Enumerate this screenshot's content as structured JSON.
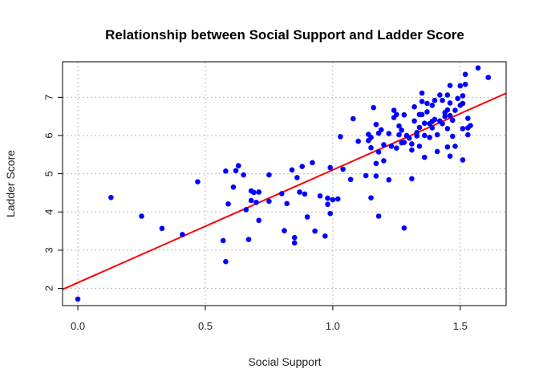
{
  "chart_data": {
    "type": "scatter",
    "title": "Relationship between Social Support and Ladder Score",
    "xlabel": "Social Support",
    "ylabel": "Ladder Score",
    "xlim": [
      -0.06,
      1.68
    ],
    "ylim": [
      1.55,
      7.93
    ],
    "xticks": [
      0,
      0.5,
      1.0,
      1.5
    ],
    "xtick_labels": [
      "0.0",
      "0.5",
      "1.0",
      "1.5"
    ],
    "yticks": [
      2,
      3,
      4,
      5,
      6,
      7
    ],
    "ytick_labels": [
      "2",
      "3",
      "4",
      "5",
      "6",
      "7"
    ],
    "grid": true,
    "point_color": "#0000ff",
    "line_color": "#ff0000",
    "fit_line": {
      "intercept": 2.15,
      "slope": 2.95
    },
    "points": [
      [
        0.0,
        1.72
      ],
      [
        0.13,
        4.38
      ],
      [
        0.25,
        3.89
      ],
      [
        0.33,
        3.57
      ],
      [
        0.41,
        3.41
      ],
      [
        0.47,
        4.79
      ],
      [
        0.57,
        3.25
      ],
      [
        0.58,
        2.7
      ],
      [
        0.58,
        5.07
      ],
      [
        0.59,
        4.21
      ],
      [
        0.61,
        4.65
      ],
      [
        0.62,
        5.08
      ],
      [
        0.63,
        5.21
      ],
      [
        0.65,
        4.97
      ],
      [
        0.66,
        4.06
      ],
      [
        0.67,
        3.28
      ],
      [
        0.68,
        4.3
      ],
      [
        0.68,
        4.55
      ],
      [
        0.69,
        4.51
      ],
      [
        0.7,
        4.25
      ],
      [
        0.71,
        3.78
      ],
      [
        0.71,
        4.52
      ],
      [
        0.75,
        4.97
      ],
      [
        0.75,
        4.28
      ],
      [
        0.8,
        4.48
      ],
      [
        0.81,
        3.51
      ],
      [
        0.82,
        4.22
      ],
      [
        0.84,
        5.1
      ],
      [
        0.85,
        3.33
      ],
      [
        0.85,
        3.19
      ],
      [
        0.86,
        4.9
      ],
      [
        0.87,
        4.52
      ],
      [
        0.88,
        5.19
      ],
      [
        0.89,
        4.47
      ],
      [
        0.9,
        3.87
      ],
      [
        0.92,
        5.29
      ],
      [
        0.93,
        3.5
      ],
      [
        0.95,
        4.42
      ],
      [
        0.97,
        3.37
      ],
      [
        0.98,
        4.36
      ],
      [
        0.98,
        4.2
      ],
      [
        0.99,
        5.16
      ],
      [
        0.99,
        3.96
      ],
      [
        1.0,
        4.32
      ],
      [
        1.02,
        4.34
      ],
      [
        1.03,
        5.97
      ],
      [
        1.04,
        5.12
      ],
      [
        1.07,
        4.85
      ],
      [
        1.08,
        6.44
      ],
      [
        1.1,
        5.85
      ],
      [
        1.13,
        4.95
      ],
      [
        1.14,
        5.87
      ],
      [
        1.14,
        6.03
      ],
      [
        1.15,
        4.37
      ],
      [
        1.15,
        5.68
      ],
      [
        1.15,
        5.95
      ],
      [
        1.16,
        6.73
      ],
      [
        1.17,
        6.29
      ],
      [
        1.17,
        5.27
      ],
      [
        1.17,
        4.94
      ],
      [
        1.18,
        5.57
      ],
      [
        1.18,
        3.89
      ],
      [
        1.18,
        6.06
      ],
      [
        1.19,
        6.15
      ],
      [
        1.2,
        5.34
      ],
      [
        1.2,
        5.76
      ],
      [
        1.22,
        4.84
      ],
      [
        1.22,
        6.05
      ],
      [
        1.23,
        5.72
      ],
      [
        1.24,
        6.47
      ],
      [
        1.24,
        6.66
      ],
      [
        1.25,
        5.67
      ],
      [
        1.25,
        6.55
      ],
      [
        1.26,
        6.25
      ],
      [
        1.26,
        6.02
      ],
      [
        1.27,
        5.81
      ],
      [
        1.27,
        6.14
      ],
      [
        1.28,
        5.82
      ],
      [
        1.28,
        3.58
      ],
      [
        1.28,
        6.54
      ],
      [
        1.29,
        6.0
      ],
      [
        1.3,
        5.93
      ],
      [
        1.31,
        4.87
      ],
      [
        1.31,
        5.62
      ],
      [
        1.31,
        5.78
      ],
      [
        1.32,
        6.38
      ],
      [
        1.32,
        6.75
      ],
      [
        1.33,
        6.08
      ],
      [
        1.33,
        5.99
      ],
      [
        1.34,
        6.55
      ],
      [
        1.34,
        6.21
      ],
      [
        1.34,
        5.72
      ],
      [
        1.35,
        7.11
      ],
      [
        1.35,
        6.89
      ],
      [
        1.35,
        6.55
      ],
      [
        1.36,
        6.32
      ],
      [
        1.36,
        6.0
      ],
      [
        1.36,
        5.43
      ],
      [
        1.37,
        6.84
      ],
      [
        1.37,
        6.62
      ],
      [
        1.38,
        6.31
      ],
      [
        1.38,
        5.95
      ],
      [
        1.39,
        6.2
      ],
      [
        1.39,
        6.79
      ],
      [
        1.39,
        6.37
      ],
      [
        1.4,
        6.42
      ],
      [
        1.4,
        6.92
      ],
      [
        1.41,
        6.02
      ],
      [
        1.41,
        5.58
      ],
      [
        1.42,
        6.38
      ],
      [
        1.42,
        7.06
      ],
      [
        1.43,
        6.31
      ],
      [
        1.43,
        6.92
      ],
      [
        1.44,
        6.6
      ],
      [
        1.44,
        6.5
      ],
      [
        1.45,
        7.06
      ],
      [
        1.45,
        6.67
      ],
      [
        1.45,
        6.18
      ],
      [
        1.45,
        5.7
      ],
      [
        1.46,
        7.31
      ],
      [
        1.46,
        6.85
      ],
      [
        1.46,
        6.52
      ],
      [
        1.46,
        5.46
      ],
      [
        1.47,
        6.4
      ],
      [
        1.47,
        5.98
      ],
      [
        1.48,
        5.72
      ],
      [
        1.48,
        6.66
      ],
      [
        1.49,
        6.97
      ],
      [
        1.5,
        7.3
      ],
      [
        1.5,
        6.79
      ],
      [
        1.51,
        6.84
      ],
      [
        1.51,
        5.36
      ],
      [
        1.51,
        6.18
      ],
      [
        1.51,
        7.04
      ],
      [
        1.52,
        7.34
      ],
      [
        1.52,
        7.6
      ],
      [
        1.53,
        6.45
      ],
      [
        1.53,
        6.2
      ],
      [
        1.53,
        6.02
      ],
      [
        1.54,
        6.26
      ],
      [
        1.57,
        7.77
      ],
      [
        1.61,
        7.52
      ]
    ]
  }
}
